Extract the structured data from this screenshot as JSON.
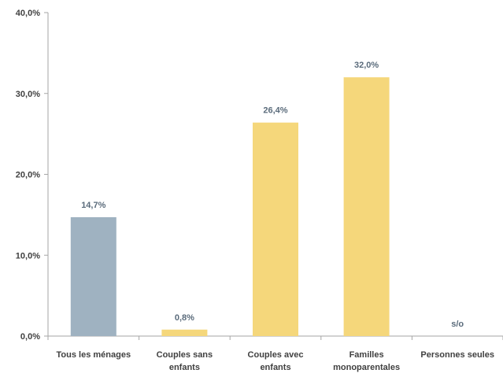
{
  "chart_data": {
    "type": "bar",
    "categories": [
      [
        "Tous les ménages"
      ],
      [
        "Couples sans",
        "enfants"
      ],
      [
        "Couples avec",
        "enfants"
      ],
      [
        "Familles",
        "monoparentales"
      ],
      [
        "Personnes seules"
      ]
    ],
    "values": [
      14.7,
      0.8,
      26.4,
      32.0,
      null
    ],
    "data_labels": [
      "14,7%",
      "0,8%",
      "26,4%",
      "32,0%",
      "s/o"
    ],
    "bar_colors": [
      "#9fb2c1",
      "#f5d77b",
      "#f5d77b",
      "#f5d77b",
      "#f5d77b"
    ],
    "ylim": [
      0,
      40
    ],
    "yticks": [
      0,
      10,
      20,
      30,
      40
    ],
    "ytick_labels": [
      "0,0%",
      "10,0%",
      "20,0%",
      "30,0%",
      "40,0%"
    ],
    "title": "",
    "xlabel": "",
    "ylabel": "",
    "grid": false,
    "legend": "none"
  }
}
